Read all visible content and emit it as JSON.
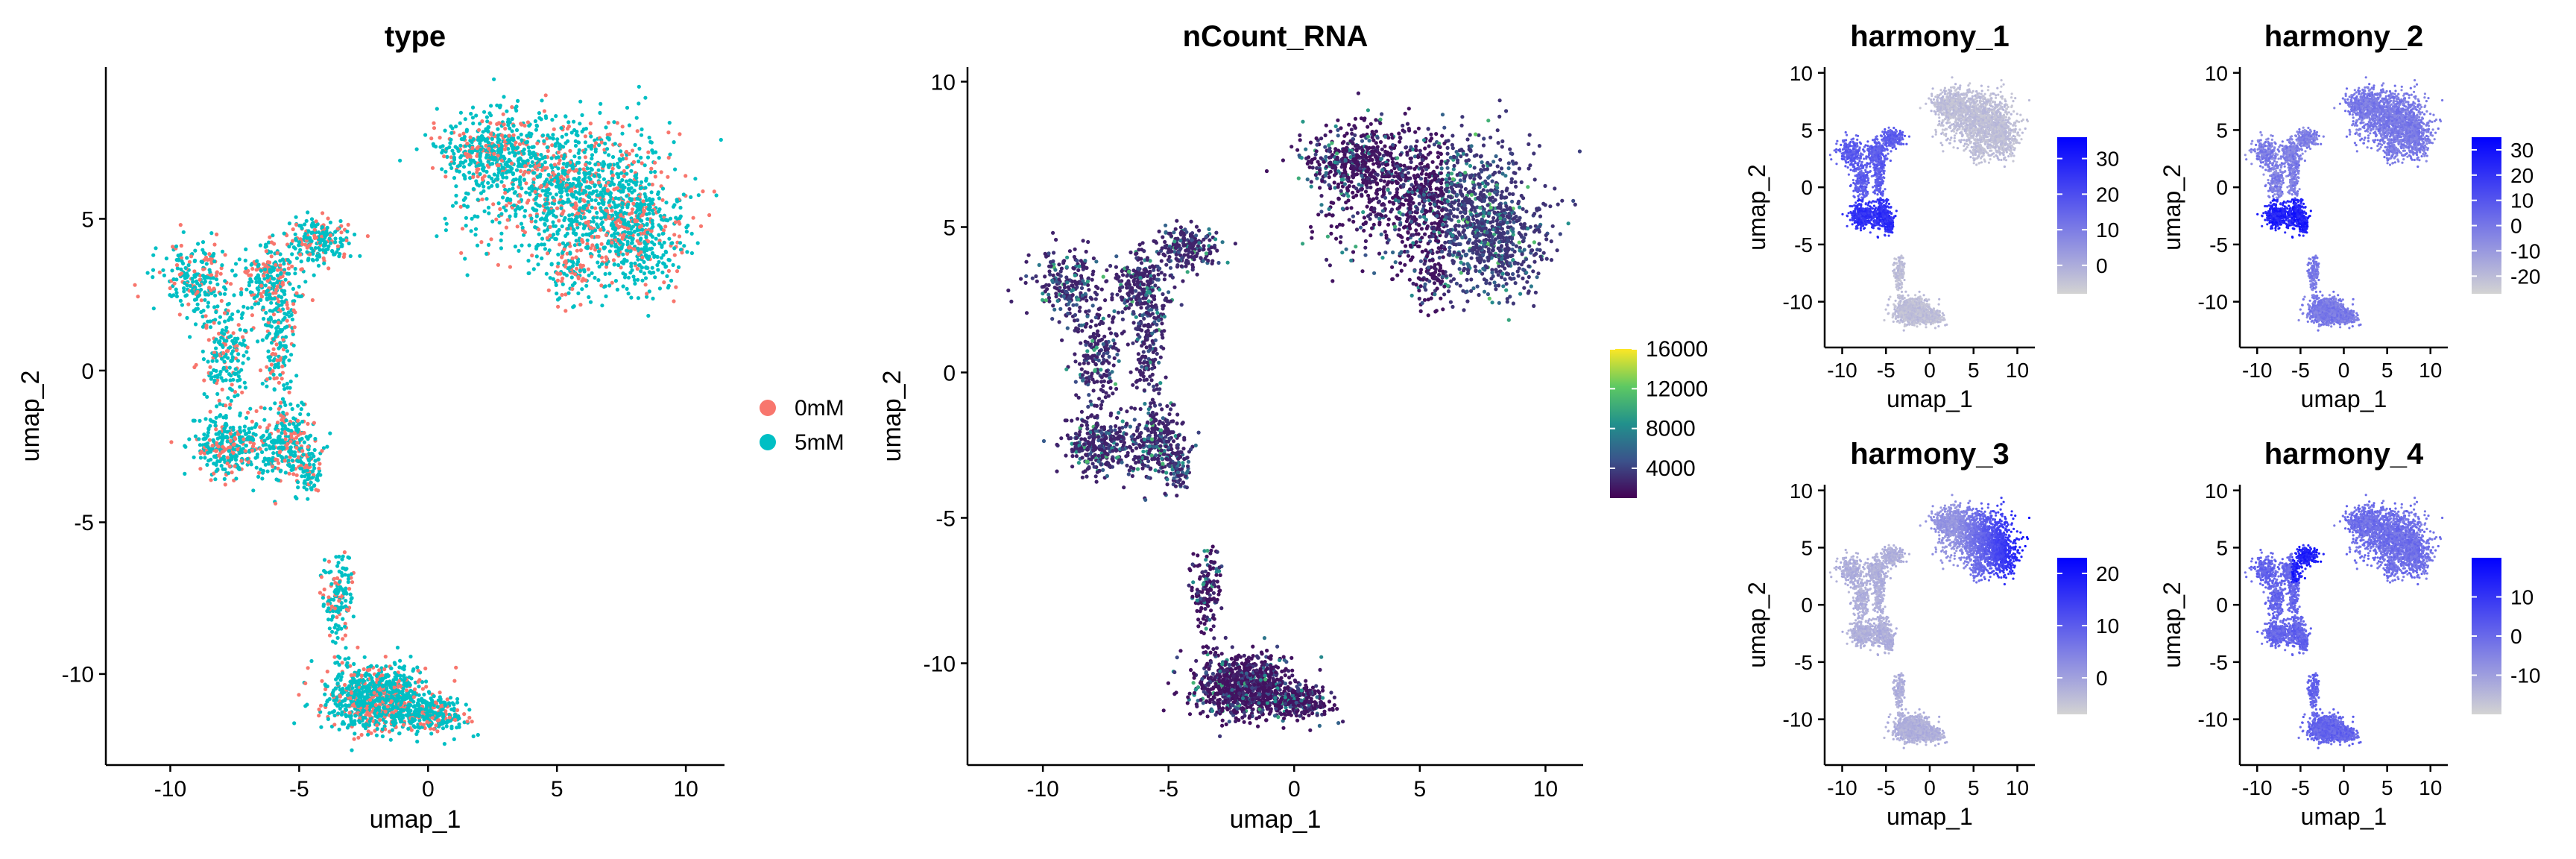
{
  "chart_data": [
    {
      "type": "scatter",
      "title": "type",
      "xlabel": "umap_1",
      "ylabel": "umap_2",
      "xlim": [
        -12.5,
        11.5
      ],
      "ylim": [
        -13,
        10
      ],
      "xticks": [
        -10,
        -5,
        0,
        5,
        10
      ],
      "yticks": [
        -10,
        -5,
        0,
        5
      ],
      "grid": false,
      "legend": "right",
      "series": [
        {
          "name": "0mM",
          "color": "#F8766D"
        },
        {
          "name": "5mM",
          "color": "#00BFC4"
        }
      ]
    },
    {
      "type": "scatter",
      "title": "nCount_RNA",
      "xlabel": "umap_1",
      "ylabel": "umap_2",
      "xlim": [
        -13,
        11.5
      ],
      "ylim": [
        -13.5,
        10.5
      ],
      "xticks": [
        -10,
        -5,
        0,
        5,
        10
      ],
      "yticks": [
        -10,
        -5,
        0,
        5,
        10
      ],
      "grid": false,
      "colorbar": {
        "min": 1000,
        "max": 16000,
        "ticks": [
          4000,
          8000,
          12000,
          16000
        ],
        "palette": "viridis"
      }
    },
    {
      "type": "scatter",
      "title": "harmony_1",
      "xlabel": "umap_1",
      "ylabel": "umap_2",
      "xlim": [
        -12,
        12
      ],
      "ylim": [
        -14,
        10.5
      ],
      "xticks": [
        -10,
        -5,
        0,
        5,
        10
      ],
      "yticks": [
        -10,
        -5,
        0,
        5,
        10
      ],
      "colorbar": {
        "min": -8,
        "max": 36,
        "ticks": [
          0,
          10,
          20,
          30
        ],
        "low": "#d3d3d3",
        "high": "#0000ff"
      }
    },
    {
      "type": "scatter",
      "title": "harmony_2",
      "xlabel": "umap_1",
      "ylabel": "umap_2",
      "xlim": [
        -12,
        12
      ],
      "ylim": [
        -14,
        10.5
      ],
      "xticks": [
        -10,
        -5,
        0,
        5,
        10
      ],
      "yticks": [
        -10,
        -5,
        0,
        5,
        10
      ],
      "colorbar": {
        "min": -27,
        "max": 35,
        "ticks": [
          -20,
          -10,
          0,
          10,
          20,
          30
        ],
        "low": "#d3d3d3",
        "high": "#0000ff"
      }
    },
    {
      "type": "scatter",
      "title": "harmony_3",
      "xlabel": "umap_1",
      "ylabel": "umap_2",
      "xlim": [
        -12,
        12
      ],
      "ylim": [
        -14,
        10.5
      ],
      "xticks": [
        -10,
        -5,
        0,
        5,
        10
      ],
      "yticks": [
        -10,
        -5,
        0,
        5,
        10
      ],
      "colorbar": {
        "min": -7,
        "max": 23,
        "ticks": [
          0,
          10,
          20
        ],
        "low": "#d3d3d3",
        "high": "#0000ff"
      }
    },
    {
      "type": "scatter",
      "title": "harmony_4",
      "xlabel": "umap_1",
      "ylabel": "umap_2",
      "xlim": [
        -12,
        12
      ],
      "ylim": [
        -14,
        10.5
      ],
      "xticks": [
        -10,
        -5,
        0,
        5,
        10
      ],
      "yticks": [
        -10,
        -5,
        0,
        5,
        10
      ],
      "colorbar": {
        "min": -20,
        "max": 20,
        "ticks": [
          -10,
          0,
          10
        ],
        "low": "#d3d3d3",
        "high": "#0000ff"
      }
    }
  ]
}
